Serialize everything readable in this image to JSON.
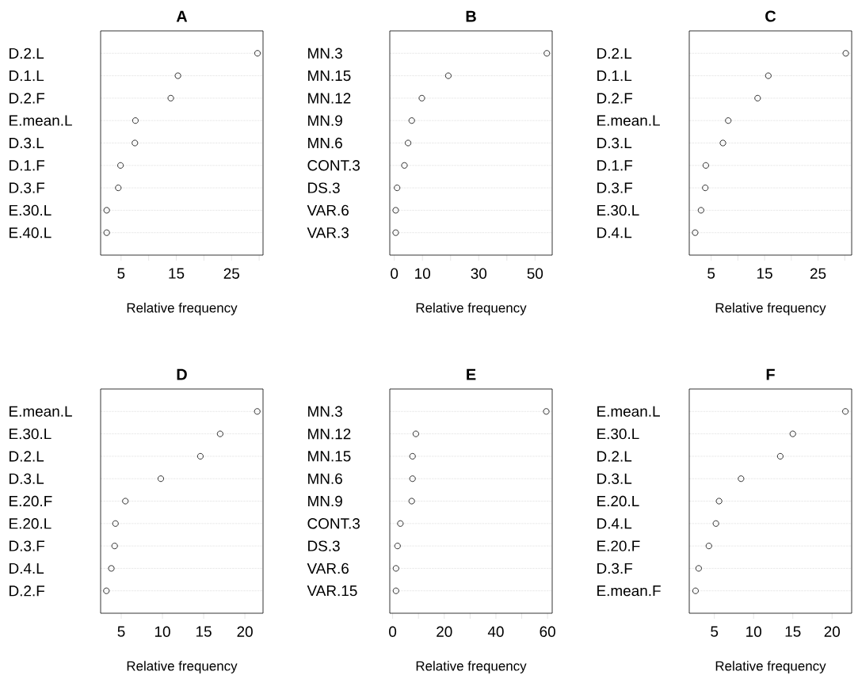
{
  "chart_data": [
    {
      "type": "scatter",
      "orientation": "horizontal",
      "title": "A",
      "xlabel": "Relative frequency",
      "marker": "circle",
      "grid": "y",
      "color": "#000000",
      "categories": [
        "D.2.L",
        "D.1.L",
        "D.2.F",
        "E.mean.L",
        "D.3.L",
        "D.1.F",
        "D.3.F",
        "E.30.L",
        "E.40.L"
      ],
      "values": [
        29.7,
        15.3,
        14.0,
        7.6,
        7.5,
        4.9,
        4.5,
        2.4,
        2.4
      ],
      "xlim": [
        1.3,
        30.7
      ],
      "xticks": [
        5,
        {
          "value": 10,
          "label": null
        },
        15,
        {
          "value": 20,
          "label": null
        },
        25,
        {
          "value": 30,
          "label": null
        }
      ]
    },
    {
      "type": "scatter",
      "orientation": "horizontal",
      "title": "B",
      "xlabel": "Relative frequency",
      "marker": "circle",
      "grid": "y",
      "color": "#000000",
      "categories": [
        "MN.3",
        "MN.15",
        "MN.12",
        "MN.9",
        "MN.6",
        "CONT.3",
        "DS.3",
        "VAR.6",
        "VAR.3"
      ],
      "values": [
        54.2,
        19.2,
        9.8,
        6.2,
        4.9,
        3.6,
        1.0,
        0.5,
        0.5
      ],
      "xlim": [
        -1.6,
        56.1
      ],
      "xticks": [
        0,
        10,
        {
          "value": 20,
          "label": null
        },
        30,
        {
          "value": 40,
          "label": null
        },
        50
      ]
    },
    {
      "type": "scatter",
      "orientation": "horizontal",
      "title": "C",
      "xlabel": "Relative frequency",
      "marker": "circle",
      "grid": "y",
      "color": "#000000",
      "categories": [
        "D.2.L",
        "D.1.L",
        "D.2.F",
        "E.mean.L",
        "D.3.L",
        "D.1.F",
        "D.3.F",
        "E.30.L",
        "D.4.L"
      ],
      "values": [
        30.2,
        15.7,
        13.7,
        8.2,
        7.2,
        4.0,
        3.9,
        3.1,
        2.0
      ],
      "xlim": [
        0.9,
        31.3
      ],
      "xticks": [
        5,
        {
          "value": 10,
          "label": null
        },
        15,
        {
          "value": 20,
          "label": null
        },
        25,
        {
          "value": 30,
          "label": null
        }
      ]
    },
    {
      "type": "scatter",
      "orientation": "horizontal",
      "title": "D",
      "xlabel": "Relative frequency",
      "marker": "circle",
      "grid": "y",
      "color": "#000000",
      "categories": [
        "E.mean.L",
        "E.30.L",
        "D.2.L",
        "D.3.L",
        "E.20.F",
        "E.20.L",
        "D.3.F",
        "D.4.L",
        "D.2.F"
      ],
      "values": [
        21.5,
        17.0,
        14.6,
        9.8,
        5.5,
        4.3,
        4.2,
        3.8,
        3.2
      ],
      "xlim": [
        2.5,
        22.2
      ],
      "xticks": [
        5,
        10,
        15,
        20
      ]
    },
    {
      "type": "scatter",
      "orientation": "horizontal",
      "title": "E",
      "xlabel": "Relative frequency",
      "marker": "circle",
      "grid": "y",
      "color": "#000000",
      "categories": [
        "MN.3",
        "MN.12",
        "MN.15",
        "MN.6",
        "MN.9",
        "CONT.3",
        "DS.3",
        "VAR.6",
        "VAR.15"
      ],
      "values": [
        59.5,
        9.0,
        7.7,
        7.7,
        7.4,
        3.0,
        1.9,
        1.3,
        1.3
      ],
      "xlim": [
        -1.1,
        61.8
      ],
      "xticks": [
        0,
        {
          "value": 10,
          "label": null
        },
        20,
        {
          "value": 30,
          "label": null
        },
        40,
        {
          "value": 50,
          "label": null
        },
        60
      ]
    },
    {
      "type": "scatter",
      "orientation": "horizontal",
      "title": "F",
      "xlabel": "Relative frequency",
      "marker": "circle",
      "grid": "y",
      "color": "#000000",
      "categories": [
        "E.mean.L",
        "E.30.L",
        "D.2.L",
        "D.3.L",
        "E.20.L",
        "D.4.L",
        "E.20.F",
        "D.3.F",
        "E.mean.F"
      ],
      "values": [
        21.7,
        15.0,
        13.4,
        8.4,
        5.6,
        5.2,
        4.3,
        3.0,
        2.6
      ],
      "xlim": [
        1.8,
        22.5
      ],
      "xticks": [
        5,
        10,
        15,
        20
      ]
    }
  ]
}
